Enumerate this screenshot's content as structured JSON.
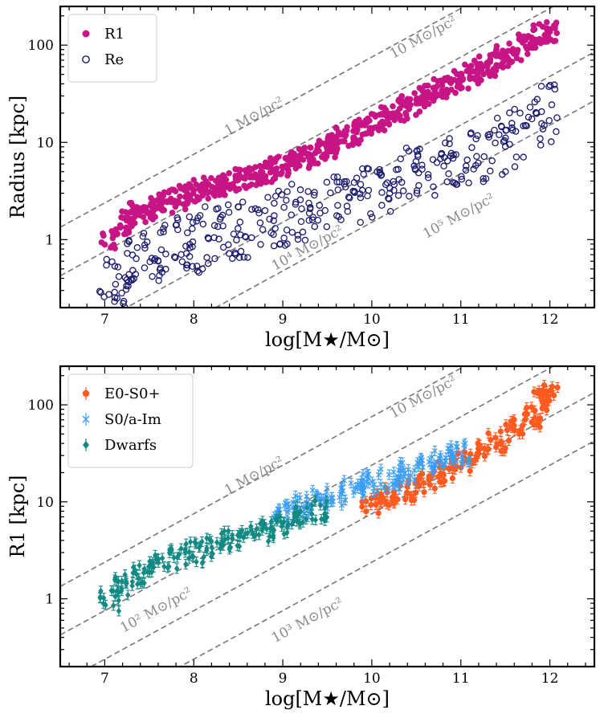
{
  "chart_data": [
    {
      "type": "scatter",
      "xlabel": "log[M★/M⊙]",
      "ylabel": "Radius [kpc]",
      "xlim": [
        6.5,
        12.5
      ],
      "ylim": [
        0.2,
        250
      ],
      "yscale": "log",
      "xticks": [
        7,
        8,
        9,
        10,
        11,
        12
      ],
      "yticks": [
        1,
        10,
        100
      ],
      "legend_position": "top-left",
      "series": [
        {
          "name": "R1",
          "color": "#c71585",
          "marker": "filled-circle",
          "points": [
            [
              7.05,
              0.95
            ],
            [
              7.2,
              1.4
            ],
            [
              7.3,
              1.9
            ],
            [
              7.4,
              1.8
            ],
            [
              7.5,
              1.95
            ],
            [
              7.6,
              2.2
            ],
            [
              7.7,
              2.4
            ],
            [
              7.8,
              2.6
            ],
            [
              7.9,
              2.9
            ],
            [
              8.0,
              3.0
            ],
            [
              8.1,
              3.2
            ],
            [
              8.2,
              3.4
            ],
            [
              8.3,
              3.6
            ],
            [
              8.4,
              3.9
            ],
            [
              8.5,
              4.2
            ],
            [
              8.6,
              4.4
            ],
            [
              8.7,
              4.6
            ],
            [
              8.8,
              5.0
            ],
            [
              8.9,
              5.4
            ],
            [
              9.0,
              5.8
            ],
            [
              9.1,
              6.2
            ],
            [
              9.2,
              7.0
            ],
            [
              9.3,
              7.6
            ],
            [
              9.4,
              8.2
            ],
            [
              9.5,
              9.0
            ],
            [
              9.6,
              10.0
            ],
            [
              9.7,
              11.5
            ],
            [
              9.8,
              12.5
            ],
            [
              9.9,
              14.0
            ],
            [
              10.0,
              15.5
            ],
            [
              10.1,
              17.0
            ],
            [
              10.2,
              19.0
            ],
            [
              10.3,
              21.0
            ],
            [
              10.4,
              23.5
            ],
            [
              10.5,
              26.0
            ],
            [
              10.6,
              29.0
            ],
            [
              10.7,
              32.0
            ],
            [
              10.8,
              36.0
            ],
            [
              10.9,
              40.0
            ],
            [
              11.0,
              45.0
            ],
            [
              11.1,
              50.0
            ],
            [
              11.2,
              56.0
            ],
            [
              11.3,
              62.0
            ],
            [
              11.4,
              70.0
            ],
            [
              11.5,
              78.0
            ],
            [
              11.6,
              88.0
            ],
            [
              11.7,
              100.0
            ],
            [
              11.8,
              115.0
            ],
            [
              11.9,
              135.0
            ],
            [
              12.0,
              140.0
            ]
          ]
        },
        {
          "name": "Re",
          "color": "#1a1a6e",
          "marker": "open-circle",
          "points": [
            [
              7.05,
              0.38
            ],
            [
              7.2,
              0.25
            ],
            [
              7.3,
              0.55
            ],
            [
              7.5,
              0.75
            ],
            [
              7.7,
              0.85
            ],
            [
              7.9,
              1.0
            ],
            [
              8.0,
              0.9
            ],
            [
              8.2,
              1.1
            ],
            [
              8.4,
              1.2
            ],
            [
              8.6,
              1.3
            ],
            [
              8.8,
              1.5
            ],
            [
              9.0,
              1.7
            ],
            [
              9.2,
              1.9
            ],
            [
              9.4,
              2.1
            ],
            [
              9.6,
              2.4
            ],
            [
              9.8,
              2.8
            ],
            [
              10.0,
              3.2
            ],
            [
              10.2,
              3.8
            ],
            [
              10.4,
              4.4
            ],
            [
              10.6,
              5.0
            ],
            [
              10.8,
              5.8
            ],
            [
              11.0,
              6.5
            ],
            [
              11.2,
              7.5
            ],
            [
              11.4,
              9.0
            ],
            [
              11.6,
              11.0
            ],
            [
              11.8,
              14.0
            ],
            [
              12.0,
              20.0
            ]
          ]
        }
      ],
      "guide_lines": [
        {
          "label": "1 M⊙/pc²",
          "label_pos": [
            8.7,
            17
          ]
        },
        {
          "label": "10 M⊙/pc²",
          "label_pos": [
            10.6,
            110
          ]
        },
        {
          "label": "10⁴ M⊙/pc²",
          "label_pos": [
            9.3,
            0.75
          ]
        },
        {
          "label": "10⁵ M⊙/pc²",
          "label_pos": [
            11.0,
            1.6
          ]
        }
      ]
    },
    {
      "type": "scatter",
      "xlabel": "log[M★/M⊙]",
      "ylabel": "R1 [kpc]",
      "xlim": [
        6.5,
        12.5
      ],
      "ylim": [
        0.2,
        250
      ],
      "yscale": "log",
      "xticks": [
        7,
        8,
        9,
        10,
        11,
        12
      ],
      "yticks": [
        1,
        10,
        100
      ],
      "legend_position": "top-left",
      "series": [
        {
          "name": "E0-S0+",
          "color": "#ff5a1f",
          "marker": "filled-circle-errorbar",
          "points": [
            [
              10.0,
              9.5
            ],
            [
              10.2,
              11.0
            ],
            [
              10.4,
              13.0
            ],
            [
              10.6,
              16.0
            ],
            [
              10.8,
              20.0
            ],
            [
              11.0,
              26.0
            ],
            [
              11.2,
              32.0
            ],
            [
              11.4,
              42.0
            ],
            [
              11.6,
              55.0
            ],
            [
              11.8,
              75.0
            ],
            [
              11.9,
              110.0
            ],
            [
              12.0,
              140.0
            ]
          ]
        },
        {
          "name": "S0/a-Im",
          "color": "#3a9ef5",
          "marker": "x-errorbar",
          "points": [
            [
              9.0,
              7.5
            ],
            [
              9.2,
              9.0
            ],
            [
              9.4,
              10.5
            ],
            [
              9.6,
              11.5
            ],
            [
              9.8,
              13.0
            ],
            [
              10.0,
              15.0
            ],
            [
              10.2,
              17.0
            ],
            [
              10.4,
              20.0
            ],
            [
              10.6,
              24.0
            ],
            [
              10.8,
              28.0
            ],
            [
              11.0,
              32.0
            ]
          ]
        },
        {
          "name": "Dwarfs",
          "color": "#138a84",
          "marker": "diamond-errorbar",
          "points": [
            [
              7.05,
              0.95
            ],
            [
              7.2,
              1.4
            ],
            [
              7.4,
              1.8
            ],
            [
              7.6,
              2.2
            ],
            [
              7.8,
              2.6
            ],
            [
              8.0,
              3.0
            ],
            [
              8.2,
              3.4
            ],
            [
              8.4,
              3.9
            ],
            [
              8.6,
              4.4
            ],
            [
              8.8,
              5.0
            ],
            [
              9.0,
              5.8
            ],
            [
              9.2,
              7.0
            ],
            [
              9.4,
              8.2
            ]
          ]
        }
      ],
      "guide_lines": [
        {
          "label": "1 M⊙/pc²",
          "label_pos": [
            8.7,
            17
          ]
        },
        {
          "label": "10 M⊙/pc²",
          "label_pos": [
            10.6,
            110
          ]
        },
        {
          "label": "10² M⊙/pc²",
          "label_pos": [
            7.6,
            0.7
          ]
        },
        {
          "label": "10³ M⊙/pc²",
          "label_pos": [
            9.3,
            0.55
          ]
        }
      ]
    }
  ]
}
